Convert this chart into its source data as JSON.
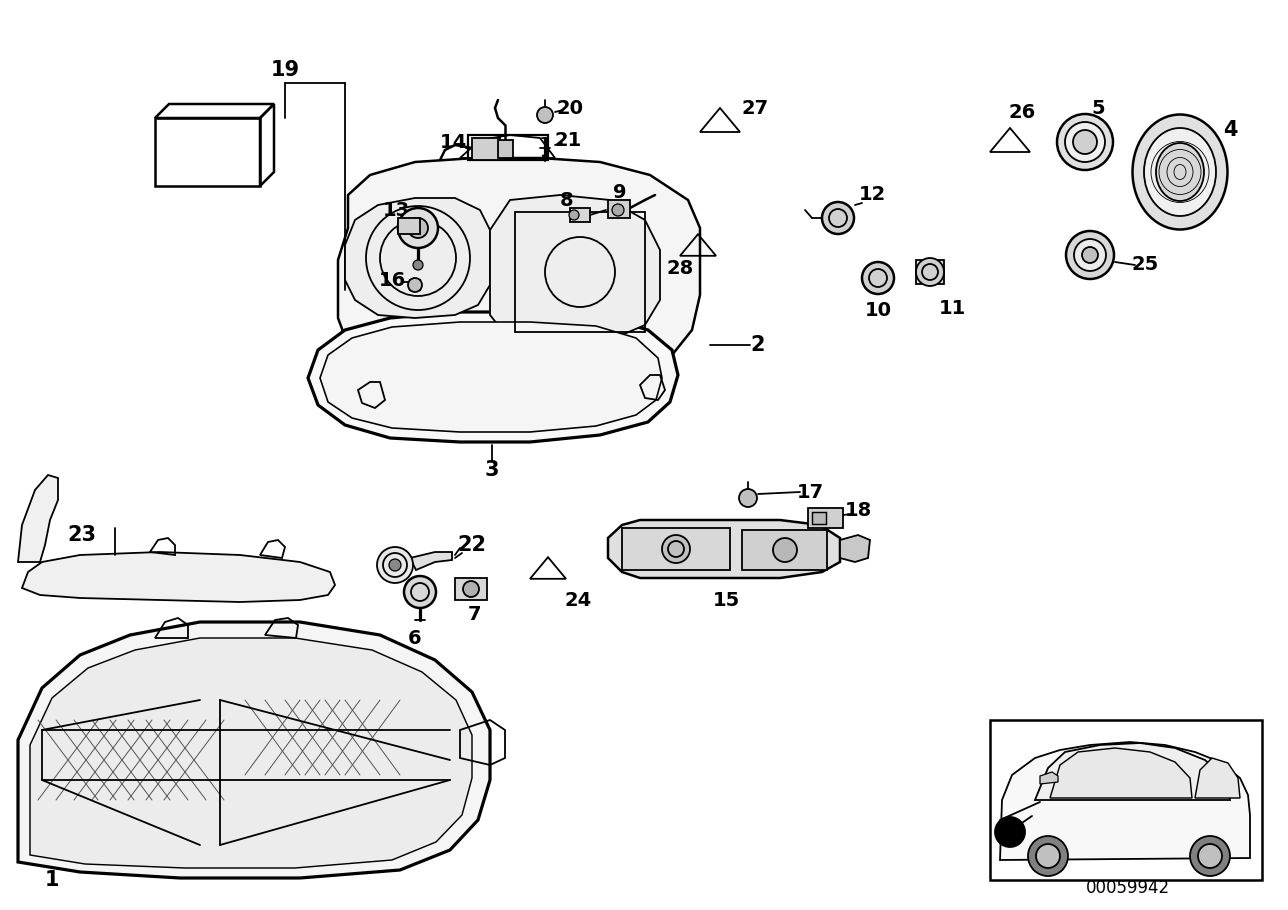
{
  "background_color": "#ffffff",
  "line_color": "#000000",
  "code": "00059942",
  "fig_width": 12.88,
  "fig_height": 9.1,
  "dpi": 100,
  "lw": 1.3
}
